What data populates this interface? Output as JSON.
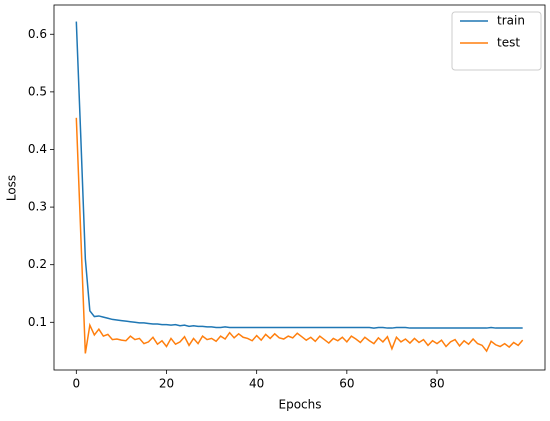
{
  "chart_data": {
    "type": "line",
    "x_label": "Epochs",
    "y_label": "Loss",
    "x": [
      0,
      1,
      2,
      3,
      4,
      5,
      6,
      7,
      8,
      9,
      10,
      11,
      12,
      13,
      14,
      15,
      16,
      17,
      18,
      19,
      20,
      21,
      22,
      23,
      24,
      25,
      26,
      27,
      28,
      29,
      30,
      31,
      32,
      33,
      34,
      35,
      36,
      37,
      38,
      39,
      40,
      41,
      42,
      43,
      44,
      45,
      46,
      47,
      48,
      49,
      50,
      51,
      52,
      53,
      54,
      55,
      56,
      57,
      58,
      59,
      60,
      61,
      62,
      63,
      64,
      65,
      66,
      67,
      68,
      69,
      70,
      71,
      72,
      73,
      74,
      75,
      76,
      77,
      78,
      79,
      80,
      81,
      82,
      83,
      84,
      85,
      86,
      87,
      88,
      89,
      90,
      91,
      92,
      93,
      94,
      95,
      96,
      97,
      98,
      99
    ],
    "series": [
      {
        "name": "train",
        "color": "#1f77b4",
        "values": [
          0.622,
          0.42,
          0.21,
          0.12,
          0.11,
          0.111,
          0.109,
          0.107,
          0.105,
          0.104,
          0.103,
          0.102,
          0.101,
          0.1,
          0.099,
          0.099,
          0.098,
          0.097,
          0.097,
          0.096,
          0.096,
          0.095,
          0.096,
          0.094,
          0.095,
          0.093,
          0.094,
          0.093,
          0.093,
          0.092,
          0.092,
          0.091,
          0.091,
          0.092,
          0.091,
          0.091,
          0.091,
          0.091,
          0.091,
          0.091,
          0.091,
          0.091,
          0.091,
          0.091,
          0.091,
          0.091,
          0.091,
          0.091,
          0.091,
          0.091,
          0.091,
          0.091,
          0.091,
          0.091,
          0.091,
          0.091,
          0.091,
          0.091,
          0.091,
          0.091,
          0.091,
          0.091,
          0.091,
          0.091,
          0.091,
          0.091,
          0.09,
          0.091,
          0.091,
          0.09,
          0.09,
          0.091,
          0.091,
          0.091,
          0.09,
          0.09,
          0.09,
          0.09,
          0.09,
          0.09,
          0.09,
          0.09,
          0.09,
          0.09,
          0.09,
          0.09,
          0.09,
          0.09,
          0.09,
          0.09,
          0.09,
          0.09,
          0.091,
          0.09,
          0.09,
          0.09,
          0.09,
          0.09,
          0.09,
          0.09
        ]
      },
      {
        "name": "test",
        "color": "#ff7f0e",
        "values": [
          0.455,
          0.25,
          0.046,
          0.095,
          0.078,
          0.088,
          0.076,
          0.079,
          0.07,
          0.071,
          0.069,
          0.068,
          0.076,
          0.07,
          0.072,
          0.063,
          0.066,
          0.074,
          0.062,
          0.068,
          0.058,
          0.072,
          0.062,
          0.066,
          0.075,
          0.06,
          0.072,
          0.063,
          0.076,
          0.07,
          0.072,
          0.067,
          0.076,
          0.071,
          0.082,
          0.073,
          0.08,
          0.074,
          0.072,
          0.068,
          0.077,
          0.069,
          0.079,
          0.072,
          0.08,
          0.073,
          0.071,
          0.076,
          0.073,
          0.081,
          0.075,
          0.069,
          0.074,
          0.067,
          0.076,
          0.07,
          0.064,
          0.072,
          0.068,
          0.074,
          0.066,
          0.076,
          0.071,
          0.065,
          0.074,
          0.068,
          0.063,
          0.073,
          0.066,
          0.075,
          0.054,
          0.074,
          0.066,
          0.071,
          0.064,
          0.072,
          0.065,
          0.07,
          0.06,
          0.068,
          0.063,
          0.069,
          0.058,
          0.066,
          0.07,
          0.059,
          0.068,
          0.062,
          0.071,
          0.063,
          0.06,
          0.05,
          0.067,
          0.061,
          0.058,
          0.063,
          0.057,
          0.065,
          0.06,
          0.069
        ]
      }
    ],
    "xlim": [
      -4.95,
      103.95
    ],
    "ylim": [
      0.0172,
      0.6508
    ],
    "xticks": [
      0,
      20,
      40,
      60,
      80
    ],
    "yticks": [
      0.1,
      0.2,
      0.3,
      0.4,
      0.5,
      0.6
    ],
    "legend": "upper right",
    "grid": false
  }
}
